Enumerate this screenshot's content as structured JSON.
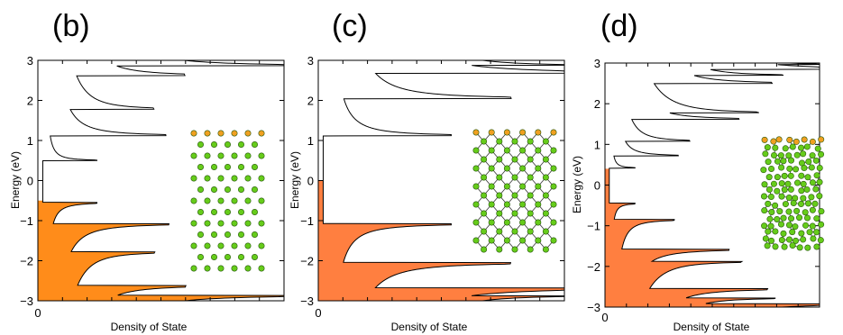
{
  "chart_data": [
    {
      "type": "line",
      "panel_label": "(b)",
      "xlabel": "Density of State",
      "ylabel": "Energy (eV)",
      "ylim": [
        -3,
        3
      ],
      "yticks": [
        "3",
        "2",
        "1",
        "0",
        "−1",
        "−2",
        "−3"
      ],
      "xticks": [
        "0"
      ],
      "fill_color": "#ff8c1a",
      "fermi_level": -0.5,
      "series": [
        {
          "peaks": [
            {
              "e": 2.87,
              "side": "up",
              "h": 1.0,
              "w": 0.05
            },
            {
              "e": 2.62,
              "side": "up",
              "h": 0.44,
              "w": 0.14
            },
            {
              "e": 1.78,
              "side": "up",
              "h": 0.34,
              "w": 0.12
            },
            {
              "e": 1.12,
              "side": "up",
              "h": 0.47,
              "w": 0.1
            },
            {
              "e": 0.5,
              "side": "up",
              "h": 0.22,
              "w": 0.05
            },
            {
              "e": -0.55,
              "side": "down",
              "h": 0.22,
              "w": 0.08
            },
            {
              "e": -1.08,
              "side": "down",
              "h": 0.47,
              "w": 0.1
            },
            {
              "e": -1.78,
              "side": "down",
              "h": 0.34,
              "w": 0.12
            },
            {
              "e": -2.62,
              "side": "down",
              "h": 0.44,
              "w": 0.14
            },
            {
              "e": -2.87,
              "side": "down",
              "h": 1.0,
              "w": 0.05
            }
          ]
        }
      ]
    },
    {
      "type": "line",
      "panel_label": "(c)",
      "xlabel": "Density of State",
      "ylabel": "Energy (eV)",
      "ylim": [
        -3,
        3
      ],
      "yticks": [
        "3",
        "2",
        "1",
        "0",
        "−1",
        "−2",
        "−3"
      ],
      "xticks": [
        "0"
      ],
      "fill_color": "#ff7f40",
      "fermi_level": 0.0,
      "series": [
        {
          "peaks": [
            {
              "e": 2.88,
              "side": "up",
              "h": 0.42,
              "w": 0.06
            },
            {
              "e": 2.68,
              "side": "up",
              "h": 1.0,
              "w": 0.12
            },
            {
              "e": 2.05,
              "side": "up",
              "h": 0.68,
              "w": 0.12
            },
            {
              "e": 1.12,
              "side": "up",
              "h": 0.52,
              "w": 0.1
            },
            {
              "e": -1.08,
              "side": "down",
              "h": 0.52,
              "w": 0.1
            },
            {
              "e": -2.05,
              "side": "down",
              "h": 0.68,
              "w": 0.12
            },
            {
              "e": -2.68,
              "side": "down",
              "h": 1.0,
              "w": 0.12
            },
            {
              "e": -2.88,
              "side": "down",
              "h": 0.42,
              "w": 0.06
            }
          ]
        }
      ]
    },
    {
      "type": "line",
      "panel_label": "(d)",
      "xlabel": "Density of State",
      "ylabel": "Energy (eV)",
      "ylim": [
        -3,
        3
      ],
      "yticks": [
        "3",
        "2",
        "1",
        "0",
        "−1",
        "−2",
        "−3"
      ],
      "xticks": [
        "0"
      ],
      "fill_color": "#ff7f40",
      "fermi_level": 0.4,
      "series": [
        {
          "peaks": [
            {
              "e": 2.97,
              "side": "up",
              "h": 0.22,
              "w": 0.04
            },
            {
              "e": 2.85,
              "side": "up",
              "h": 1.0,
              "w": 0.06
            },
            {
              "e": 2.7,
              "side": "up",
              "h": 0.42,
              "w": 0.06
            },
            {
              "e": 2.5,
              "side": "up",
              "h": 0.55,
              "w": 0.1
            },
            {
              "e": 1.78,
              "side": "up",
              "h": 0.42,
              "w": 0.08
            },
            {
              "e": 1.62,
              "side": "up",
              "h": 0.5,
              "w": 0.08
            },
            {
              "e": 1.08,
              "side": "up",
              "h": 0.3,
              "w": 0.08
            },
            {
              "e": 0.72,
              "side": "up",
              "h": 0.3,
              "w": 0.06
            },
            {
              "e": 0.42,
              "side": "up",
              "h": 0.12,
              "w": 0.04
            },
            {
              "e": -0.45,
              "side": "down",
              "h": 0.12,
              "w": 0.06
            },
            {
              "e": -0.85,
              "side": "down",
              "h": 0.28,
              "w": 0.08
            },
            {
              "e": -1.58,
              "side": "down",
              "h": 0.5,
              "w": 0.1
            },
            {
              "e": -1.88,
              "side": "down",
              "h": 0.42,
              "w": 0.08
            },
            {
              "e": -2.55,
              "side": "down",
              "h": 0.55,
              "w": 0.1
            },
            {
              "e": -2.78,
              "side": "down",
              "h": 0.42,
              "w": 0.06
            },
            {
              "e": -2.92,
              "side": "down",
              "h": 1.0,
              "w": 0.05
            }
          ]
        }
      ]
    }
  ],
  "insets": [
    {
      "structure": "armchair-nanotube-segment",
      "atom_color": "#66cc1a",
      "end_atom_color": "#f0a020",
      "rows": 13,
      "cols": 6
    },
    {
      "structure": "zigzag-nanotube-segment",
      "atom_color": "#66cc1a",
      "end_atom_color": "#f0a020",
      "rows": 14,
      "cols": 6
    },
    {
      "structure": "disordered-nanotube-segment",
      "atom_color": "#66cc1a",
      "end_atom_color": "#f0a020",
      "rows": 16,
      "cols": 8
    }
  ]
}
